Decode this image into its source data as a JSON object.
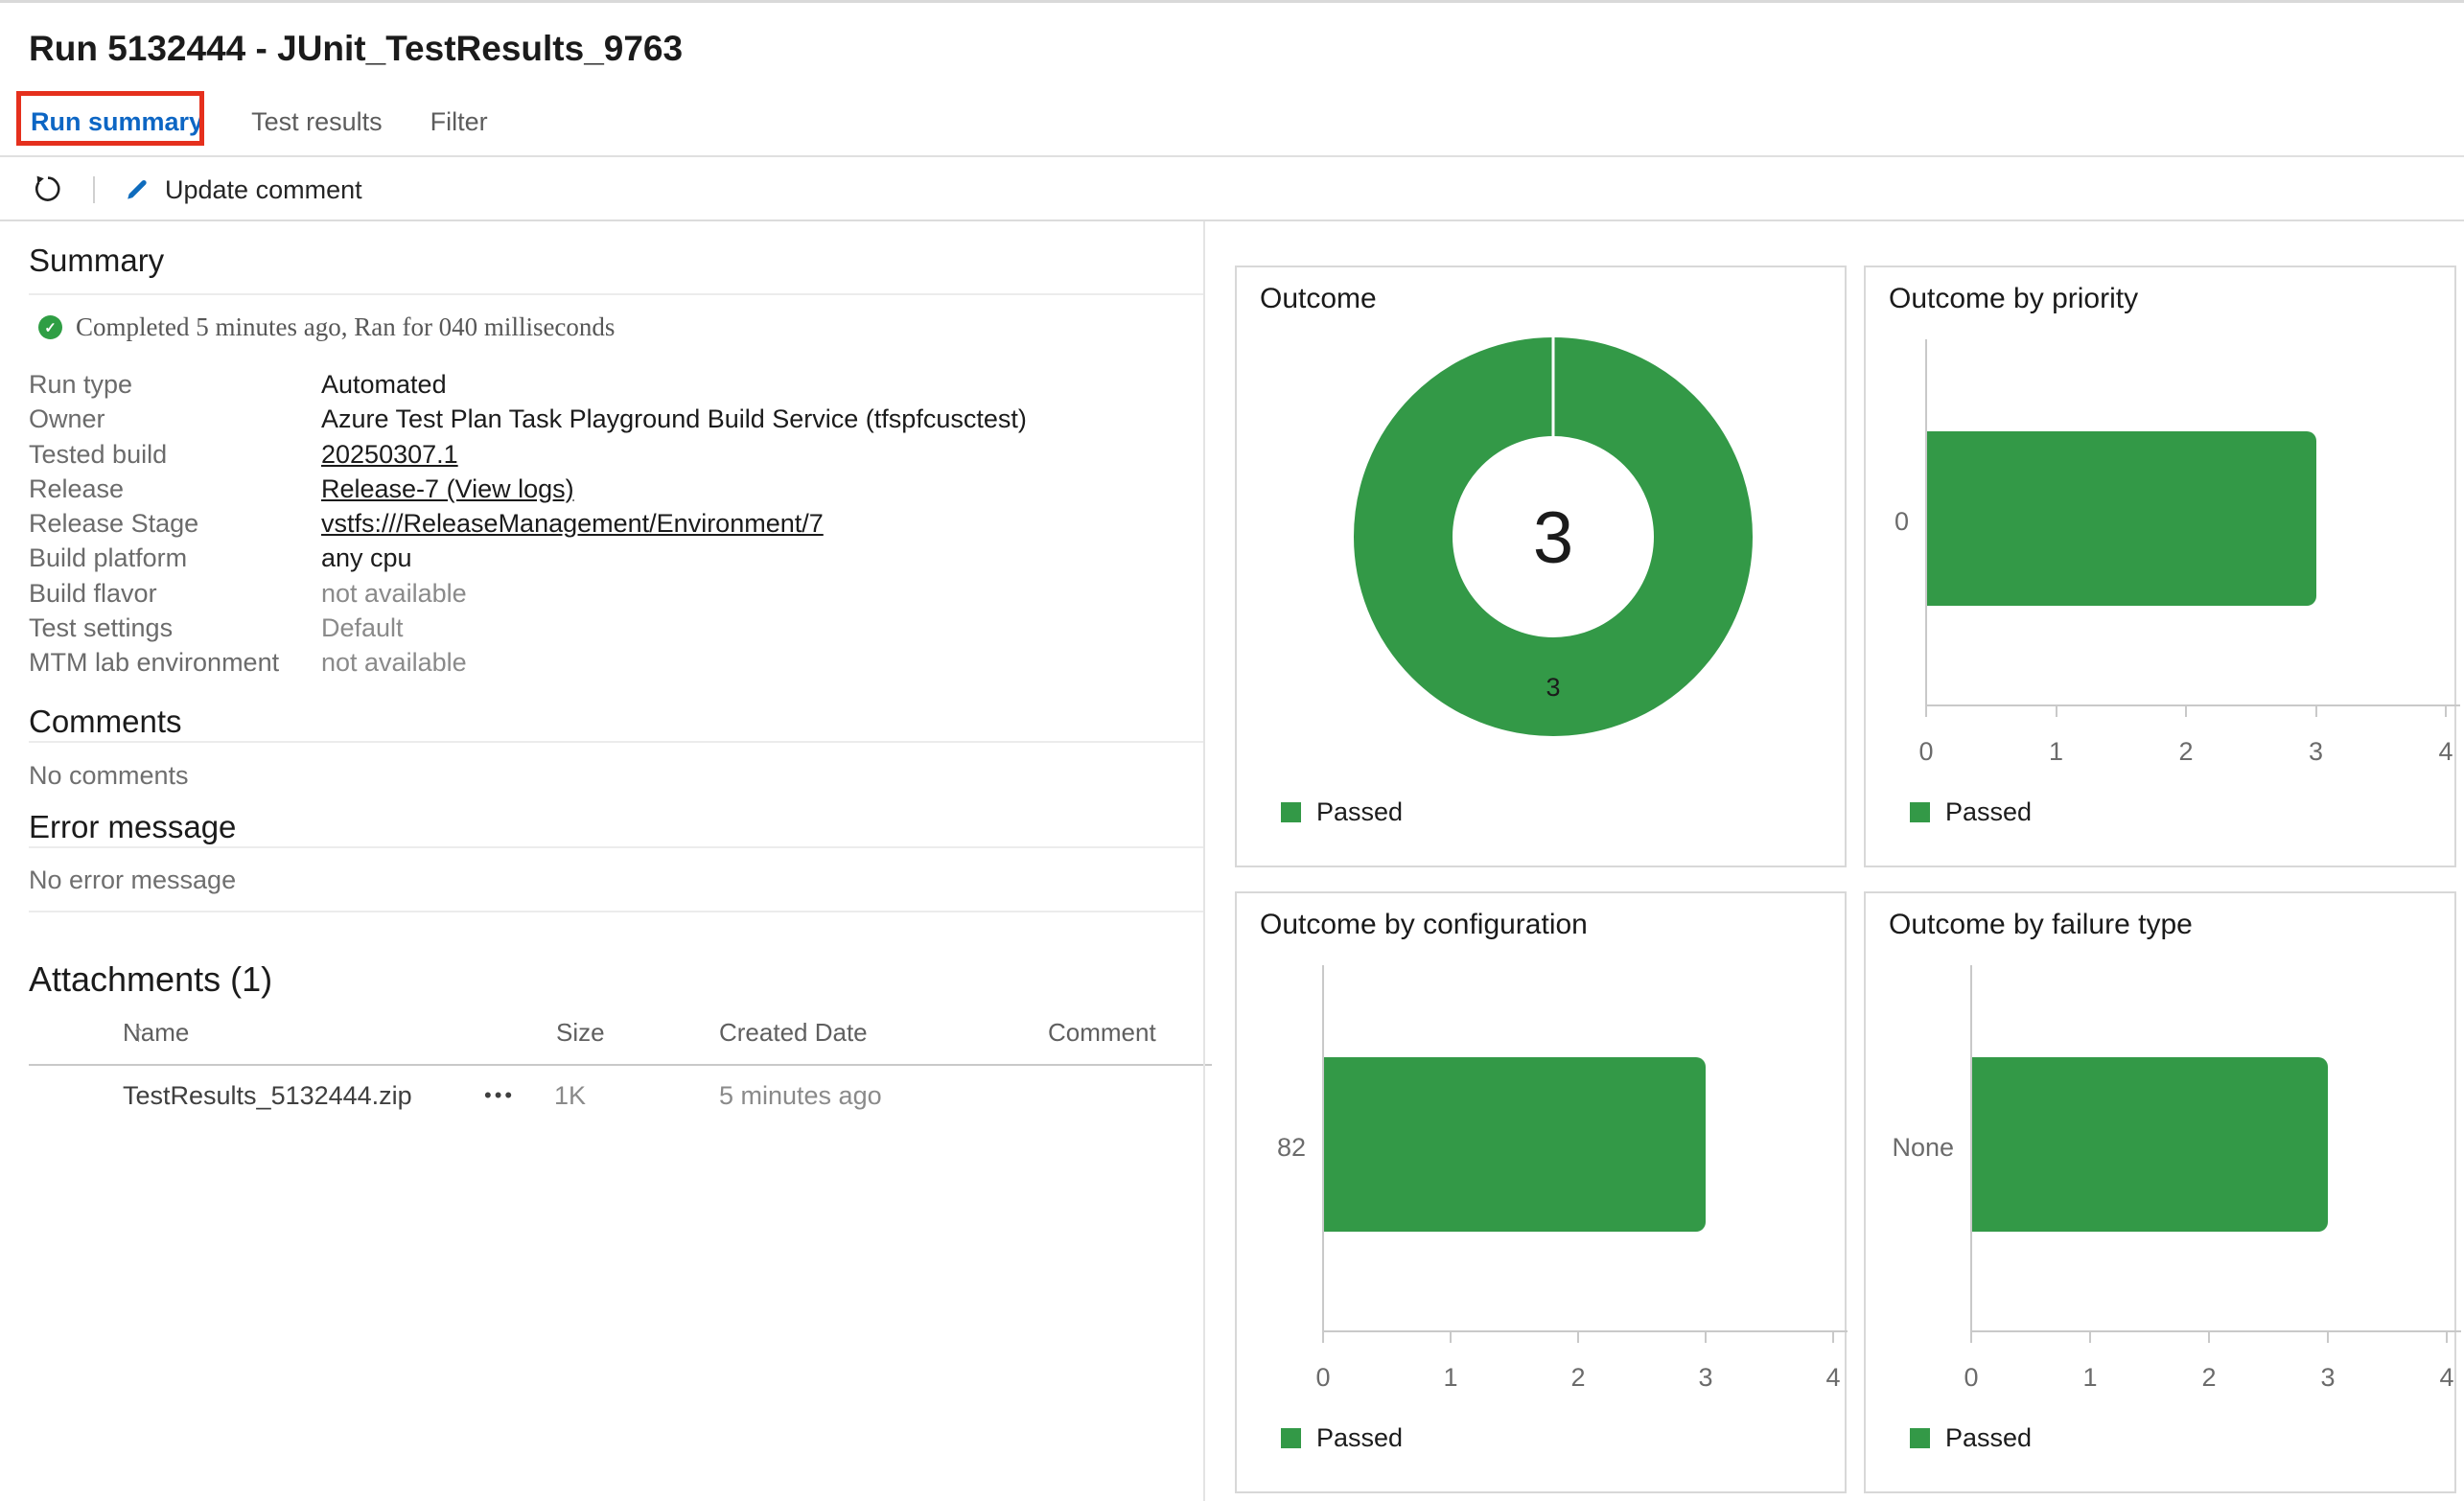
{
  "colors": {
    "passed_green": "#339947",
    "status_green": "#2f9e44",
    "active_tab_blue": "#0d66c4",
    "pencil_blue": "#0f6cbd",
    "annotation_red": "#e5301d"
  },
  "page": {
    "title": "Run 5132444 - JUnit_TestResults_9763",
    "tabs": [
      {
        "label": "Run summary",
        "active": true
      },
      {
        "label": "Test results",
        "active": false
      },
      {
        "label": "Filter",
        "active": false
      }
    ],
    "toolbar": {
      "update_comment_label": "Update comment"
    }
  },
  "summary": {
    "heading": "Summary",
    "status_icon": "✓",
    "status_text": "Completed 5 minutes ago, Ran for 040 milliseconds",
    "fields": [
      {
        "label": "Run type",
        "value": "Automated",
        "style": "normal"
      },
      {
        "label": "Owner",
        "value": "Azure Test Plan Task Playground Build Service (tfspfcusctest)",
        "style": "normal"
      },
      {
        "label": "Tested build",
        "value": "20250307.1",
        "style": "link"
      },
      {
        "label": "Release",
        "value": "Release-7 (View logs)",
        "style": "link"
      },
      {
        "label": "Release Stage",
        "value": "vstfs:///ReleaseManagement/Environment/7",
        "style": "link"
      },
      {
        "label": "Build platform",
        "value": "any cpu",
        "style": "normal"
      },
      {
        "label": "Build flavor",
        "value": "not available",
        "style": "muted"
      },
      {
        "label": "Test settings",
        "value": "Default",
        "style": "muted"
      },
      {
        "label": "MTM lab environment",
        "value": "not available",
        "style": "muted"
      }
    ]
  },
  "comments": {
    "heading": "Comments",
    "empty_text": "No comments"
  },
  "error_message": {
    "heading": "Error message",
    "empty_text": "No error message"
  },
  "attachments": {
    "heading": "Attachments (1)",
    "columns": [
      "Name",
      "Size",
      "Created Date",
      "Comment"
    ],
    "sort_arrow": "↑",
    "more_icon": "•••",
    "rows": [
      {
        "name": "TestResults_5132444.zip",
        "size": "1K",
        "created_date": "5 minutes ago",
        "comment": ""
      }
    ]
  },
  "charts": [
    {
      "type": "donut",
      "title": "Outcome",
      "legend": "Passed",
      "color": "#339947",
      "total_label": "3",
      "slice_label": "3",
      "series": [
        {
          "name": "Passed",
          "value": 3
        }
      ]
    },
    {
      "type": "bar",
      "title": "Outcome by priority",
      "legend": "Passed",
      "color": "#339947",
      "categories": [
        "0"
      ],
      "values": [
        3
      ],
      "xticks": [
        "0",
        "1",
        "2",
        "3",
        "4"
      ],
      "xlim": [
        0,
        4
      ]
    },
    {
      "type": "bar",
      "title": "Outcome by configuration",
      "legend": "Passed",
      "color": "#339947",
      "categories": [
        "82"
      ],
      "values": [
        3
      ],
      "xticks": [
        "0",
        "1",
        "2",
        "3",
        "4"
      ],
      "xlim": [
        0,
        4
      ]
    },
    {
      "type": "bar",
      "title": "Outcome by failure type",
      "legend": "Passed",
      "color": "#339947",
      "categories": [
        "None"
      ],
      "values": [
        3
      ],
      "xticks": [
        "0",
        "1",
        "2",
        "3",
        "4"
      ],
      "xlim": [
        0,
        4
      ]
    }
  ]
}
